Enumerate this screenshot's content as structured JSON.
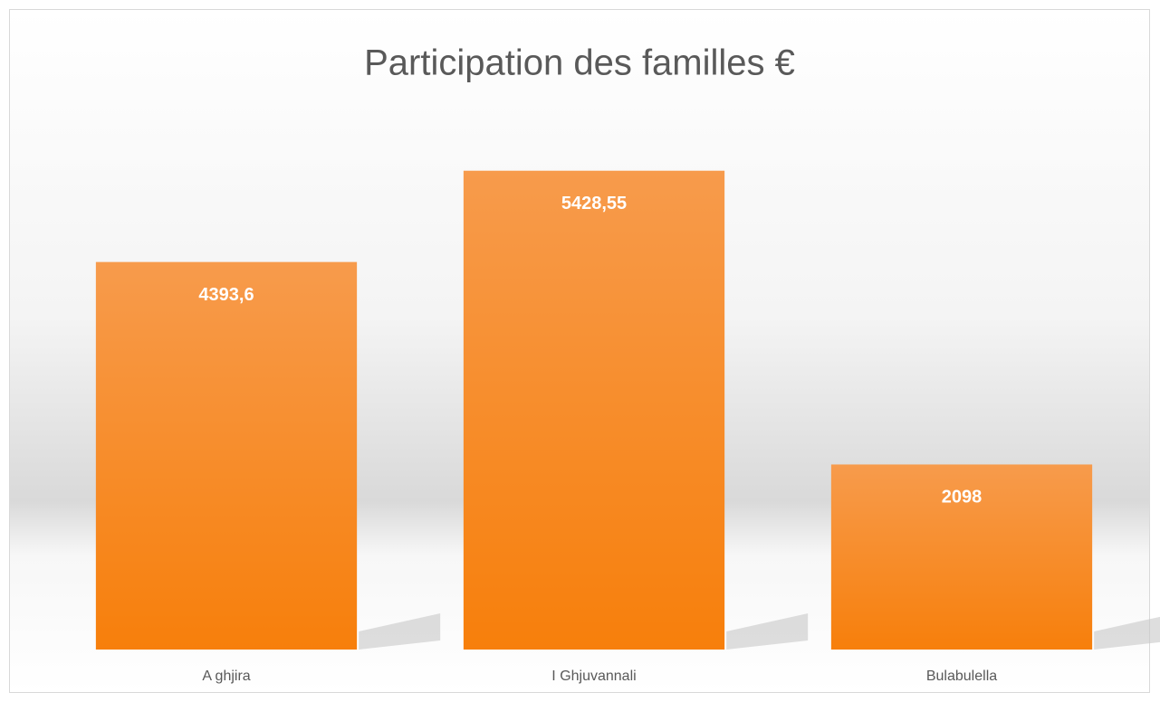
{
  "chart_data": {
    "type": "bar",
    "title": "Participation des familles €",
    "categories": [
      "A ghjira",
      "I Ghjuvannali",
      "Bulabulella"
    ],
    "values": [
      4393.6,
      5428.55,
      2098
    ],
    "value_labels": [
      "4393,6",
      "5428,55",
      "2098"
    ],
    "color": "#f7901e",
    "ylim": [
      0,
      6000
    ]
  }
}
